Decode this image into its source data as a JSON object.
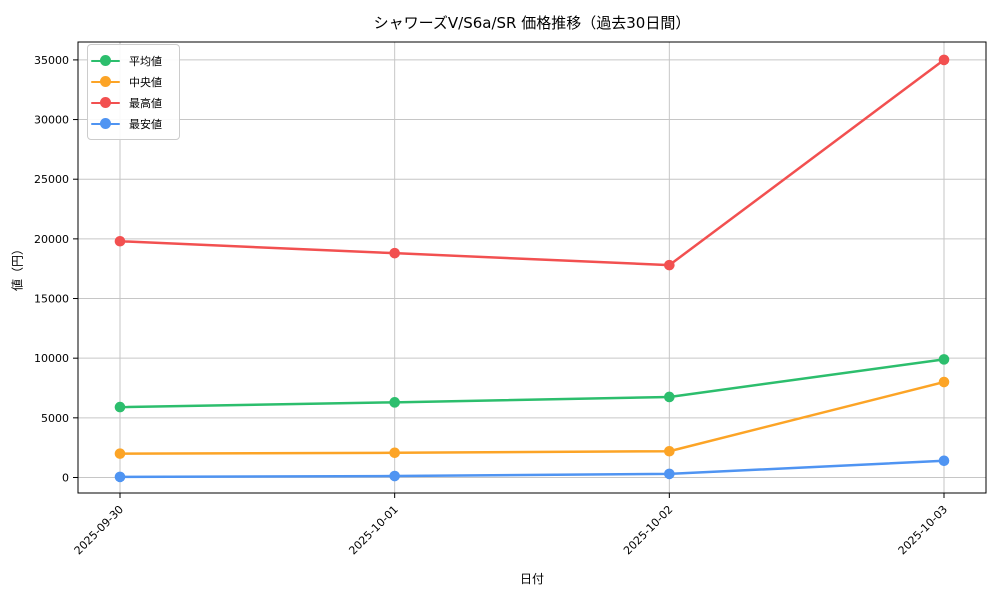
{
  "chart_data": {
    "type": "line",
    "title": "シャワーズV/S6a/SR 価格推移（過去30日間）",
    "xlabel": "日付",
    "ylabel": "値（円）",
    "categories": [
      "2025-09-30",
      "2025-10-01",
      "2025-10-02",
      "2025-10-03"
    ],
    "series": [
      {
        "key": "average",
        "name": "平均値",
        "color": "#2cbe6d",
        "values": [
          5900,
          6300,
          6750,
          9900
        ]
      },
      {
        "key": "median",
        "name": "中央値",
        "color": "#fca426",
        "values": [
          2000,
          2070,
          2200,
          8000
        ]
      },
      {
        "key": "highest",
        "name": "最高値",
        "color": "#f25050",
        "values": [
          19800,
          18800,
          17800,
          35000
        ]
      },
      {
        "key": "lowest",
        "name": "最安値",
        "color": "#4f94f2",
        "values": [
          50,
          120,
          300,
          1400
        ]
      }
    ],
    "y_ticks": [
      0,
      5000,
      10000,
      15000,
      20000,
      25000,
      30000,
      35000
    ],
    "ylim": [
      -1300,
      36500
    ],
    "grid": true,
    "legend_position": "upper left",
    "grid_color": "#c6c6c6",
    "axis_color": "#000000"
  }
}
